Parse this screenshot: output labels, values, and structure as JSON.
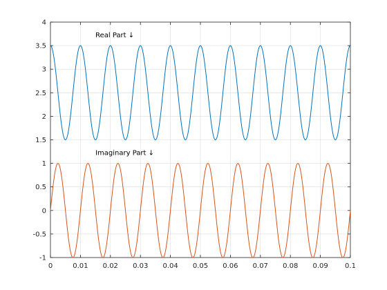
{
  "chart_data": {
    "type": "line",
    "title": "",
    "xlabel": "",
    "ylabel": "",
    "xlim": [
      0,
      0.1
    ],
    "ylim": [
      -1,
      4
    ],
    "grid": true,
    "x_ticks": [
      0,
      0.01,
      0.02,
      0.03,
      0.04,
      0.05,
      0.06,
      0.07,
      0.08,
      0.09,
      0.1
    ],
    "x_tick_labels": [
      "0",
      "0.01",
      "0.02",
      "0.03",
      "0.04",
      "0.05",
      "0.06",
      "0.07",
      "0.08",
      "0.09",
      "0.1"
    ],
    "y_ticks": [
      -1,
      -0.5,
      0,
      0.5,
      1,
      1.5,
      2,
      2.5,
      3,
      3.5,
      4
    ],
    "y_tick_labels": [
      "-1",
      "-0.5",
      "0",
      "0.5",
      "1",
      "1.5",
      "2",
      "2.5",
      "3",
      "3.5",
      "4"
    ],
    "series": [
      {
        "color": "#0072bd",
        "form": "offset + amplitude * cos(2*pi*frequency*x)",
        "offset": 2.5,
        "amplitude": 1,
        "frequency": 100
      },
      {
        "color": "#d95319",
        "form": "amplitude * sin(2*pi*frequency*x)",
        "offset": 0,
        "amplitude": 1,
        "frequency": 100
      }
    ],
    "annotations": [
      {
        "text": "Real Part ↓",
        "x": 0.015,
        "y": 3.68
      },
      {
        "text": "Imaginary Part ↓",
        "x": 0.015,
        "y": 1.18
      }
    ]
  }
}
